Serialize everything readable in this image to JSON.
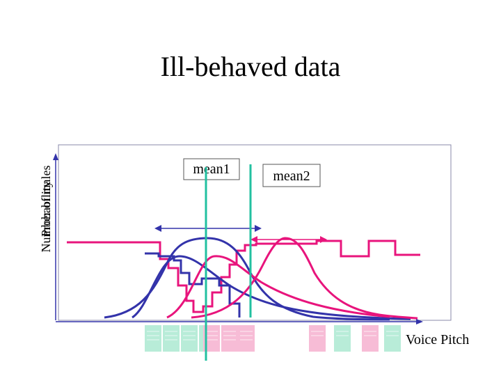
{
  "title": "Ill-behaved data",
  "y_axis_labels": [
    "Number of males",
    "Probability"
  ],
  "x_axis_label": "Voice Pitch",
  "mean1_label": "mean1",
  "mean2_label": "mean2",
  "colors": {
    "blue": "#3333aa",
    "magenta": "#e8147c",
    "teal": "#22c0a0",
    "frame": "#8888aa",
    "stamp_teal": "#b8ecd8",
    "stamp_pink": "#f7bcd6"
  }
}
